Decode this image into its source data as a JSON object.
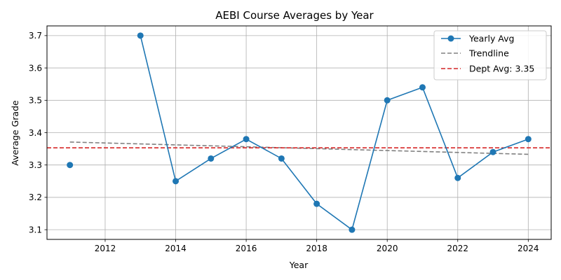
{
  "chart_data": {
    "type": "line",
    "title": "AEBI Course Averages by Year",
    "xlabel": "Year",
    "ylabel": "Average Grade",
    "xlim": [
      2010.35,
      2024.65
    ],
    "ylim": [
      3.07,
      3.73
    ],
    "x_ticks": [
      2012,
      2014,
      2016,
      2018,
      2020,
      2022,
      2024
    ],
    "y_ticks": [
      3.1,
      3.2,
      3.3,
      3.4,
      3.5,
      3.6,
      3.7
    ],
    "grid": true,
    "legend_position": "top-right",
    "series": [
      {
        "name": "Yearly Avg",
        "color": "#1f77b4",
        "marker": "circle",
        "segments": [
          [
            [
              2011,
              3.3
            ]
          ],
          [
            [
              2013,
              3.7
            ],
            [
              2014,
              3.25
            ],
            [
              2015,
              3.32
            ],
            [
              2016,
              3.38
            ],
            [
              2017,
              3.32
            ],
            [
              2018,
              3.18
            ],
            [
              2019,
              3.1
            ],
            [
              2020,
              3.5
            ],
            [
              2021,
              3.54
            ],
            [
              2022,
              3.26
            ],
            [
              2023,
              3.34
            ],
            [
              2024,
              3.38
            ]
          ]
        ]
      },
      {
        "name": "Trendline",
        "color": "#808080",
        "style": "dashed",
        "points": [
          [
            2011,
            3.371
          ],
          [
            2024,
            3.333
          ]
        ]
      },
      {
        "name": "Dept Avg: 3.35",
        "color": "#d62728",
        "style": "dashed",
        "hline": 3.353
      }
    ]
  }
}
